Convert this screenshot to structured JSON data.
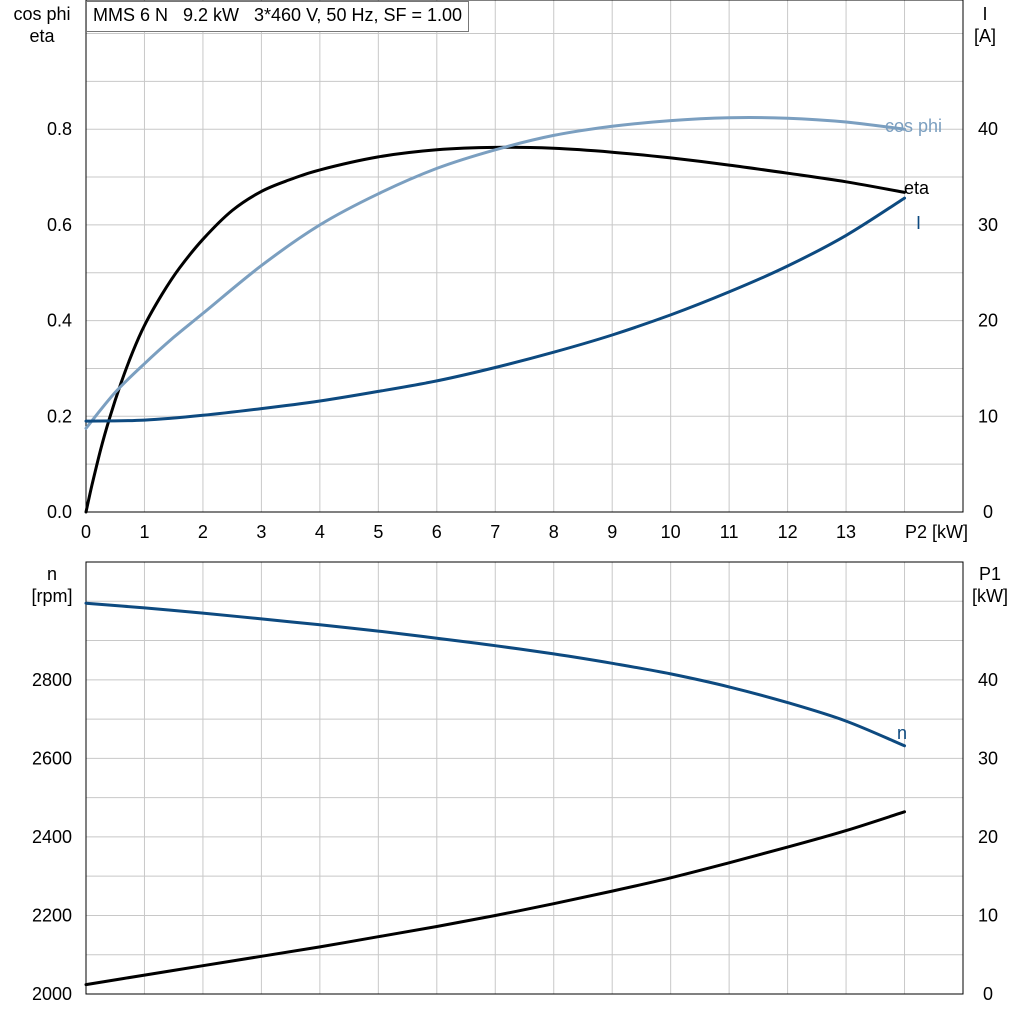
{
  "title": "MMS 6 N   9.2 kW   3*460 V, 50 Hz, SF = 1.00",
  "colors": {
    "eta": "#000000",
    "cos_phi": "#7b9fc0",
    "current": "#0d4a80",
    "speed": "#0d4a80",
    "p1": "#000000",
    "grid": "#c8c8c8"
  },
  "chart_data": [
    {
      "type": "line",
      "panel": "top",
      "y_left_label": [
        "cos phi",
        "eta"
      ],
      "y_right_label": [
        "I",
        "[A]"
      ],
      "x_label": "P2 [kW]",
      "x_ticks": [
        "0",
        "1",
        "2",
        "3",
        "4",
        "5",
        "6",
        "7",
        "8",
        "9",
        "10",
        "11",
        "12",
        "13"
      ],
      "x_range": [
        0,
        15
      ],
      "y_left_ticks": [
        "0.0",
        "0.2",
        "0.4",
        "0.6",
        "0.8"
      ],
      "y_left_range": [
        0,
        1.07
      ],
      "y_right_ticks": [
        "0",
        "10",
        "20",
        "30",
        "40"
      ],
      "y_right_range": [
        0,
        53.5
      ],
      "grid": true,
      "series": [
        {
          "name": "eta",
          "axis": "left",
          "color": "#000000",
          "x": [
            0.0,
            0.1,
            0.25,
            0.4,
            0.6,
            0.8,
            1.0,
            1.3,
            1.6,
            2.0,
            2.5,
            3.0,
            3.5,
            4.0,
            5.0,
            6.0,
            7.0,
            8.0,
            9.0,
            10.0,
            11.0,
            12.0,
            13.0,
            14.0
          ],
          "y": [
            0.0,
            0.055,
            0.13,
            0.195,
            0.27,
            0.335,
            0.39,
            0.455,
            0.51,
            0.57,
            0.63,
            0.67,
            0.695,
            0.715,
            0.742,
            0.757,
            0.762,
            0.76,
            0.752,
            0.74,
            0.725,
            0.708,
            0.69,
            0.668
          ]
        },
        {
          "name": "cos phi",
          "axis": "left",
          "color": "#7b9fc0",
          "x": [
            0.0,
            0.5,
            1.0,
            1.5,
            2.0,
            3.0,
            4.0,
            5.0,
            6.0,
            7.0,
            8.0,
            9.0,
            10.0,
            11.0,
            12.0,
            13.0,
            14.0
          ],
          "y": [
            0.175,
            0.25,
            0.31,
            0.365,
            0.415,
            0.515,
            0.6,
            0.665,
            0.718,
            0.757,
            0.787,
            0.806,
            0.818,
            0.824,
            0.823,
            0.815,
            0.8
          ]
        },
        {
          "name": "I",
          "axis": "right",
          "color": "#0d4a80",
          "x": [
            0.0,
            1.0,
            2.0,
            3.0,
            4.0,
            5.0,
            6.0,
            7.0,
            8.0,
            9.0,
            10.0,
            11.0,
            12.0,
            13.0,
            14.0
          ],
          "y": [
            9.5,
            9.6,
            10.1,
            10.8,
            11.6,
            12.6,
            13.7,
            15.1,
            16.7,
            18.5,
            20.6,
            23.0,
            25.7,
            28.9,
            32.8
          ]
        }
      ]
    },
    {
      "type": "line",
      "panel": "bottom",
      "y_left_label": [
        "n",
        "[rpm]"
      ],
      "y_right_label": [
        "P1",
        "[kW]"
      ],
      "x_range": [
        0,
        15
      ],
      "y_left_ticks": [
        "2000",
        "2200",
        "2400",
        "2600",
        "2800"
      ],
      "y_left_range": [
        2000,
        3100
      ],
      "y_right_ticks": [
        "0",
        "10",
        "20",
        "30",
        "40"
      ],
      "y_right_range": [
        0,
        55
      ],
      "grid": true,
      "series": [
        {
          "name": "n",
          "axis": "left",
          "color": "#0d4a80",
          "x": [
            0.0,
            1.0,
            2.0,
            3.0,
            4.0,
            5.0,
            6.0,
            7.0,
            8.0,
            9.0,
            10.0,
            11.0,
            12.0,
            13.0,
            14.0
          ],
          "y": [
            2995,
            2983,
            2970,
            2955,
            2940,
            2924,
            2906,
            2887,
            2866,
            2842,
            2815,
            2782,
            2742,
            2695,
            2632
          ]
        },
        {
          "name": "",
          "axis": "right",
          "color": "#000000",
          "x": [
            0.0,
            1.0,
            2.0,
            3.0,
            4.0,
            5.0,
            6.0,
            7.0,
            8.0,
            9.0,
            10.0,
            11.0,
            12.0,
            13.0,
            14.0
          ],
          "y": [
            1.2,
            2.4,
            3.6,
            4.8,
            6.0,
            7.3,
            8.6,
            10.0,
            11.5,
            13.1,
            14.8,
            16.7,
            18.7,
            20.8,
            23.2
          ]
        }
      ]
    }
  ]
}
